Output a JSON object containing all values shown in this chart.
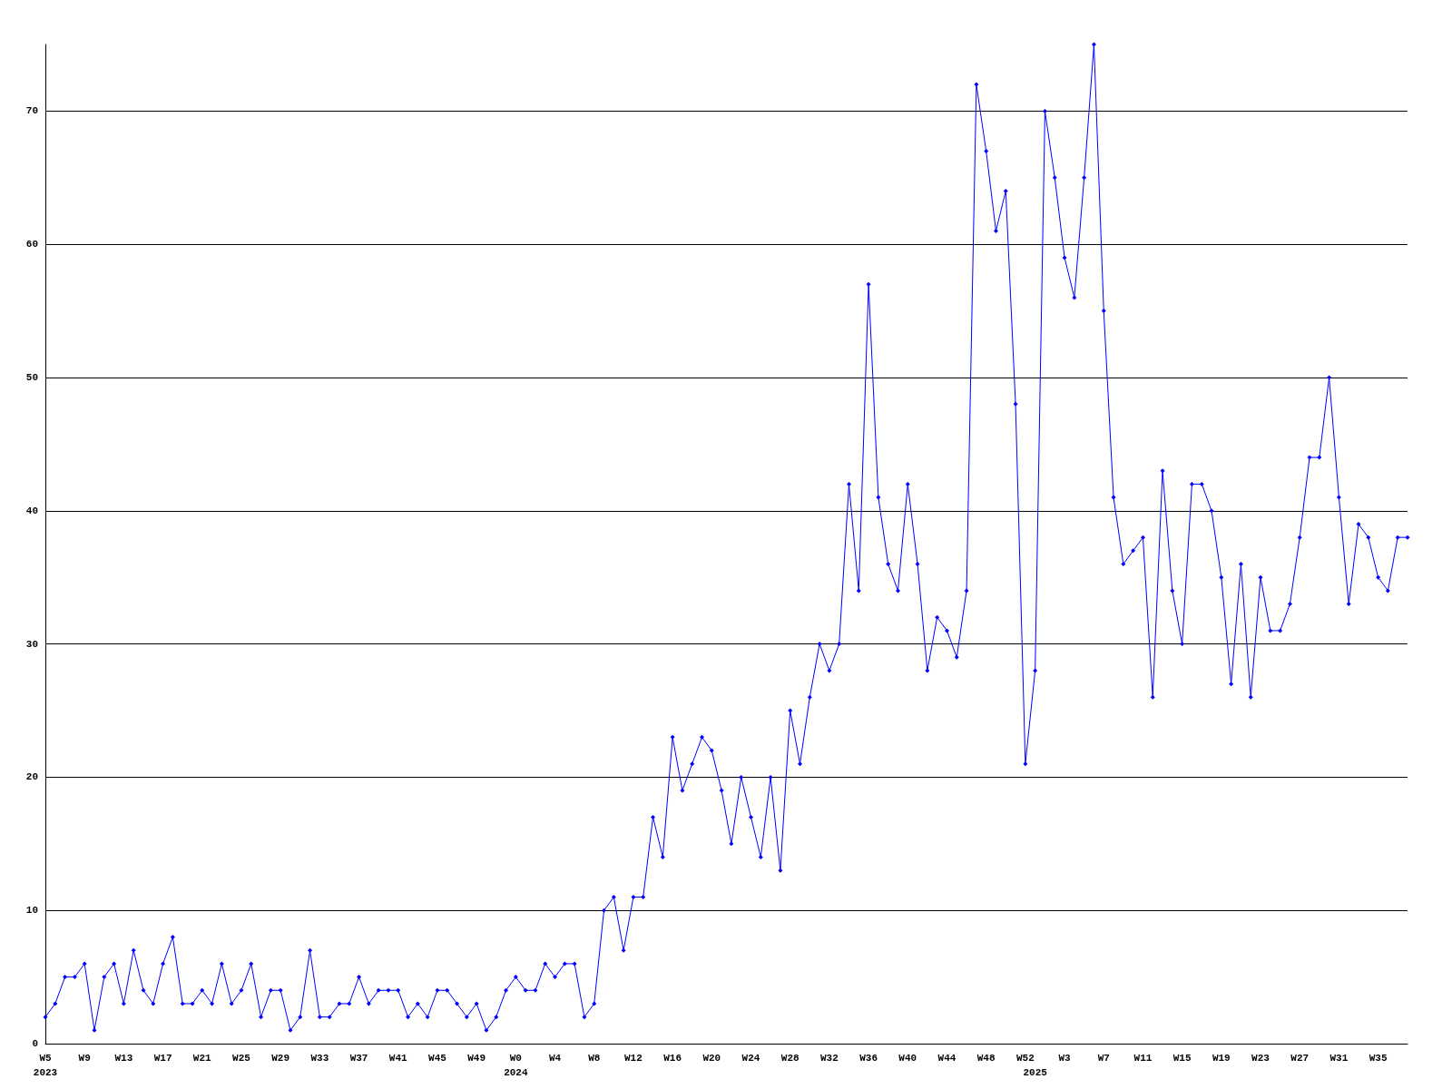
{
  "chart_data": {
    "type": "line",
    "categories": [
      "W5\n2023",
      null,
      null,
      null,
      "W9",
      null,
      null,
      null,
      "W13",
      null,
      null,
      null,
      "W17",
      null,
      null,
      null,
      "W21",
      null,
      null,
      null,
      "W25",
      null,
      null,
      null,
      "W29",
      null,
      null,
      null,
      "W33",
      null,
      null,
      null,
      "W37",
      null,
      null,
      null,
      "W41",
      null,
      null,
      null,
      "W45",
      null,
      null,
      null,
      "W49",
      null,
      null,
      null,
      "W0\n2024",
      null,
      null,
      null,
      "W4",
      null,
      null,
      null,
      "W8",
      null,
      null,
      null,
      "W12",
      null,
      null,
      null,
      "W16",
      null,
      null,
      null,
      "W20",
      null,
      null,
      null,
      "W24",
      null,
      null,
      null,
      "W28",
      null,
      null,
      null,
      "W32",
      null,
      null,
      null,
      "W36",
      null,
      null,
      null,
      "W40",
      null,
      null,
      null,
      "W44",
      null,
      null,
      null,
      "W48",
      null,
      null,
      null,
      "W52",
      "\n2025",
      null,
      null,
      "W3",
      null,
      null,
      null,
      "W7",
      null,
      null,
      null,
      "W11",
      null,
      null,
      null,
      "W15",
      null,
      null,
      null,
      "W19",
      null,
      null,
      null,
      "W23",
      null,
      null,
      null,
      "W27",
      null,
      null,
      null,
      "W31",
      null,
      null,
      null,
      "W35",
      null,
      null,
      null
    ],
    "series": [
      {
        "color": "#0000ff",
        "values": [
          2,
          3,
          5,
          5,
          6,
          1,
          5,
          6,
          3,
          7,
          4,
          3,
          6,
          8,
          3,
          3,
          4,
          3,
          6,
          3,
          4,
          6,
          2,
          4,
          4,
          1,
          2,
          7,
          2,
          2,
          3,
          3,
          5,
          3,
          4,
          4,
          4,
          2,
          3,
          2,
          4,
          4,
          3,
          2,
          3,
          1,
          2,
          4,
          5,
          4,
          4,
          6,
          5,
          6,
          6,
          2,
          3,
          10,
          11,
          7,
          11,
          11,
          17,
          14,
          23,
          19,
          21,
          23,
          22,
          19,
          15,
          20,
          17,
          14,
          20,
          13,
          25,
          21,
          26,
          30,
          28,
          30,
          42,
          34,
          57,
          41,
          36,
          34,
          42,
          36,
          28,
          32,
          31,
          29,
          34,
          72,
          67,
          61,
          64,
          48,
          21,
          28,
          70,
          65,
          59,
          56,
          65,
          75,
          55,
          41,
          36,
          37,
          38,
          26,
          43,
          34,
          30,
          42,
          42,
          40,
          35,
          27,
          36,
          26,
          35,
          31,
          31,
          33,
          38,
          44,
          44,
          50,
          41,
          33,
          39,
          38,
          35,
          34,
          38,
          38
        ]
      }
    ],
    "ylim": [
      0,
      75
    ],
    "yticks": [
      0,
      10,
      20,
      30,
      40,
      50,
      60,
      70
    ],
    "grid": "y",
    "marker": "diamond",
    "line_style": "solid"
  }
}
